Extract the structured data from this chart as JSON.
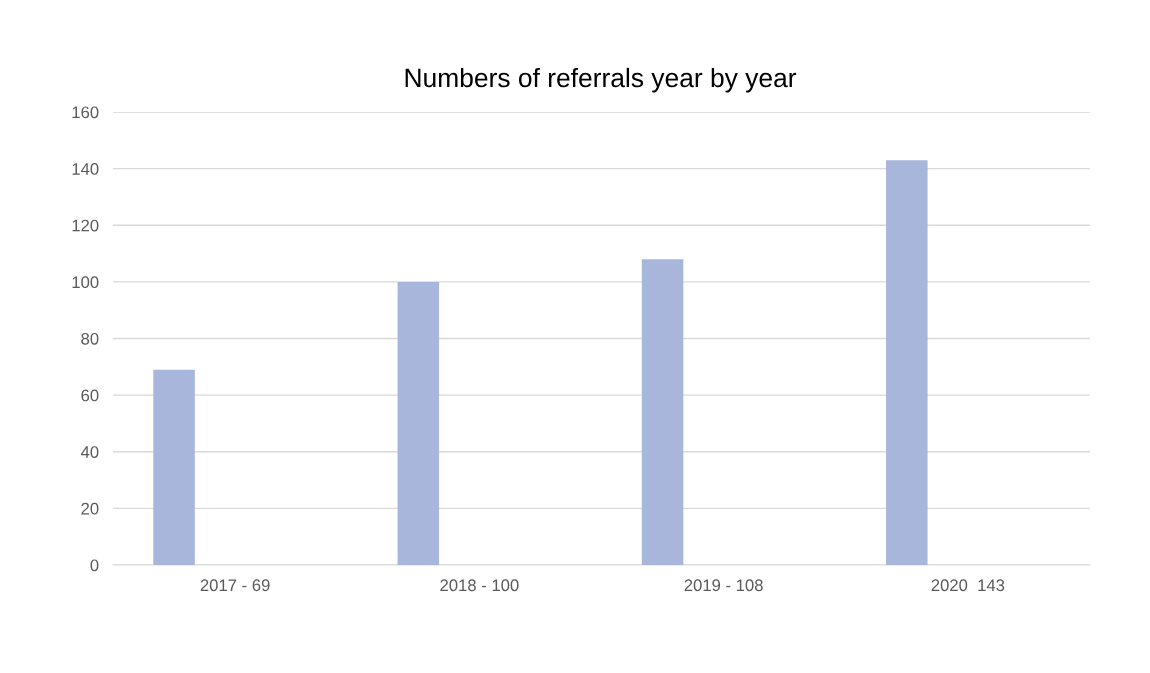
{
  "chart_data": {
    "type": "bar",
    "title": "Numbers of referrals year by year",
    "categories": [
      "2017 - 69",
      "2018 - 100",
      "2019 - 108",
      "2020  143"
    ],
    "values": [
      69,
      100,
      108,
      143
    ],
    "color": "#a9b6db",
    "ylim": [
      0,
      160
    ],
    "yticks": [
      0,
      20,
      40,
      60,
      80,
      100,
      120,
      140,
      160
    ],
    "grid": "y"
  }
}
